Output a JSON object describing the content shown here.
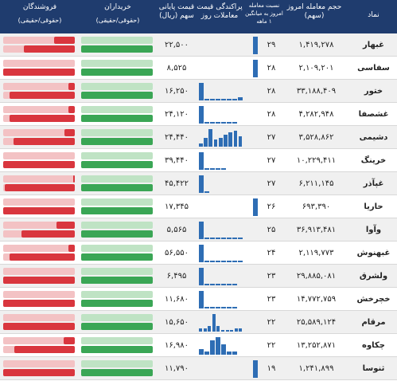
{
  "header": {
    "symbol": "نماد",
    "volume": "حجم معامله امروز (سهم)",
    "ratio": "نسبت معامله امروز به میانگین ۱ ماهه",
    "spread": "پراکندگی قیمت معاملات روز",
    "price": "قیمت پایانی سهم (ریال)",
    "buyers": "خریداران",
    "buyers_sub": "(حقوقی/حقیقی)",
    "sellers": "فروشندگان",
    "sellers_sub": "(حقوقی/حقیقی)"
  },
  "table": {
    "rows": [
      {
        "symbol": "غبهار",
        "volume": "۱,۴۱۹,۲۷۸",
        "ratio": "۲۹",
        "price": "۲۲,۵۰۰",
        "spread": [
          10
        ],
        "buy": [
          0,
          100
        ],
        "sell": [
          29,
          71
        ]
      },
      {
        "symbol": "سفاسی",
        "volume": "۲,۱۰۹,۲۰۱",
        "ratio": "۲۸",
        "price": "۸,۵۲۵",
        "spread": [
          10
        ],
        "buy": [
          0,
          100
        ],
        "sell": [
          0,
          100
        ]
      },
      {
        "symbol": "ختور",
        "volume": "۳۳,۱۸۸,۴۰۹",
        "ratio": "۲۸",
        "price": "۱۶,۲۵۰",
        "spread": [
          10,
          1,
          1,
          1,
          1,
          1,
          1,
          2
        ],
        "buy": [
          0,
          100
        ],
        "sell": [
          9,
          91
        ]
      },
      {
        "symbol": "غشصفا",
        "volume": "۴,۲۸۲,۹۴۸",
        "ratio": "۲۸",
        "price": "۲۴,۱۲۰",
        "spread": [
          10,
          1,
          1,
          1,
          1,
          1,
          1
        ],
        "buy": [
          0,
          100
        ],
        "sell": [
          9,
          91
        ]
      },
      {
        "symbol": "دشیمی",
        "volume": "۳,۵۲۸,۸۶۲",
        "ratio": "۲۷",
        "price": "۲۴,۴۴۰",
        "spread": [
          2,
          5,
          10,
          4,
          5,
          7,
          8,
          9,
          6
        ],
        "buy": [
          0,
          100
        ],
        "sell": [
          14,
          86
        ]
      },
      {
        "symbol": "خرینگ",
        "volume": "۱۰,۲۲۹,۴۱۱",
        "ratio": "۲۷",
        "price": "۳۹,۴۴۰",
        "spread": [
          10,
          1,
          1,
          1,
          1
        ],
        "buy": [
          0,
          100
        ],
        "sell": [
          0,
          100
        ]
      },
      {
        "symbol": "غپآذر",
        "volume": "۶,۲۱۱,۱۴۵",
        "ratio": "۲۷",
        "price": "۴۵,۴۲۲",
        "spread": [
          10,
          1
        ],
        "buy": [
          0,
          100
        ],
        "sell": [
          2,
          98
        ]
      },
      {
        "symbol": "حاریا",
        "volume": "۶۹۳,۳۹۰",
        "ratio": "۲۶",
        "price": "۱۷,۳۴۵",
        "spread": [
          10
        ],
        "buy": [
          0,
          100
        ],
        "sell": [
          0,
          100
        ]
      },
      {
        "symbol": "وآوا",
        "volume": "۳۶,۹۱۳,۴۸۱",
        "ratio": "۲۵",
        "price": "۵,۵۶۵",
        "spread": [
          10,
          1,
          1,
          1,
          1,
          1,
          1,
          1
        ],
        "buy": [
          0,
          100
        ],
        "sell": [
          26,
          74
        ]
      },
      {
        "symbol": "غبهنوش",
        "volume": "۲,۱۱۹,۷۷۳",
        "ratio": "۲۴",
        "price": "۵۶,۵۵۰",
        "spread": [
          10,
          1,
          1,
          1,
          1,
          1,
          1,
          1
        ],
        "buy": [
          0,
          100
        ],
        "sell": [
          9,
          91
        ]
      },
      {
        "symbol": "ولشرق",
        "volume": "۲۹,۸۸۵,۰۸۱",
        "ratio": "۲۳",
        "price": "۶,۴۹۵",
        "spread": [
          10,
          1,
          1,
          1,
          1,
          1,
          1
        ],
        "buy": [
          0,
          100
        ],
        "sell": [
          0,
          100
        ]
      },
      {
        "symbol": "خچرخش",
        "volume": "۱۴,۷۷۲,۷۵۹",
        "ratio": "۲۳",
        "price": "۱۱,۶۸۰",
        "spread": [
          10,
          1,
          1,
          1,
          1,
          1,
          1
        ],
        "buy": [
          0,
          100
        ],
        "sell": [
          0,
          100
        ]
      },
      {
        "symbol": "مرقام",
        "volume": "۲۵,۵۸۹,۱۲۴",
        "ratio": "۲۲",
        "price": "۱۵,۶۵۰",
        "spread": [
          2,
          2,
          3,
          10,
          3,
          1,
          1,
          1,
          2,
          2
        ],
        "buy": [
          0,
          100
        ],
        "sell": [
          0,
          100
        ]
      },
      {
        "symbol": "چکاوه",
        "volume": "۱۳,۲۵۲,۸۷۱",
        "ratio": "۲۲",
        "price": "۱۶,۹۸۰",
        "spread": [
          3,
          2,
          8,
          10,
          6,
          2,
          2
        ],
        "buy": [
          0,
          100
        ],
        "sell": [
          16,
          84
        ]
      },
      {
        "symbol": "ثنوسا",
        "volume": "۱,۲۴۱,۸۹۹",
        "ratio": "۱۹",
        "price": "۱۱,۷۹۰",
        "spread": [
          10
        ],
        "buy": [
          0,
          100
        ],
        "sell": [
          0,
          100
        ]
      }
    ]
  }
}
